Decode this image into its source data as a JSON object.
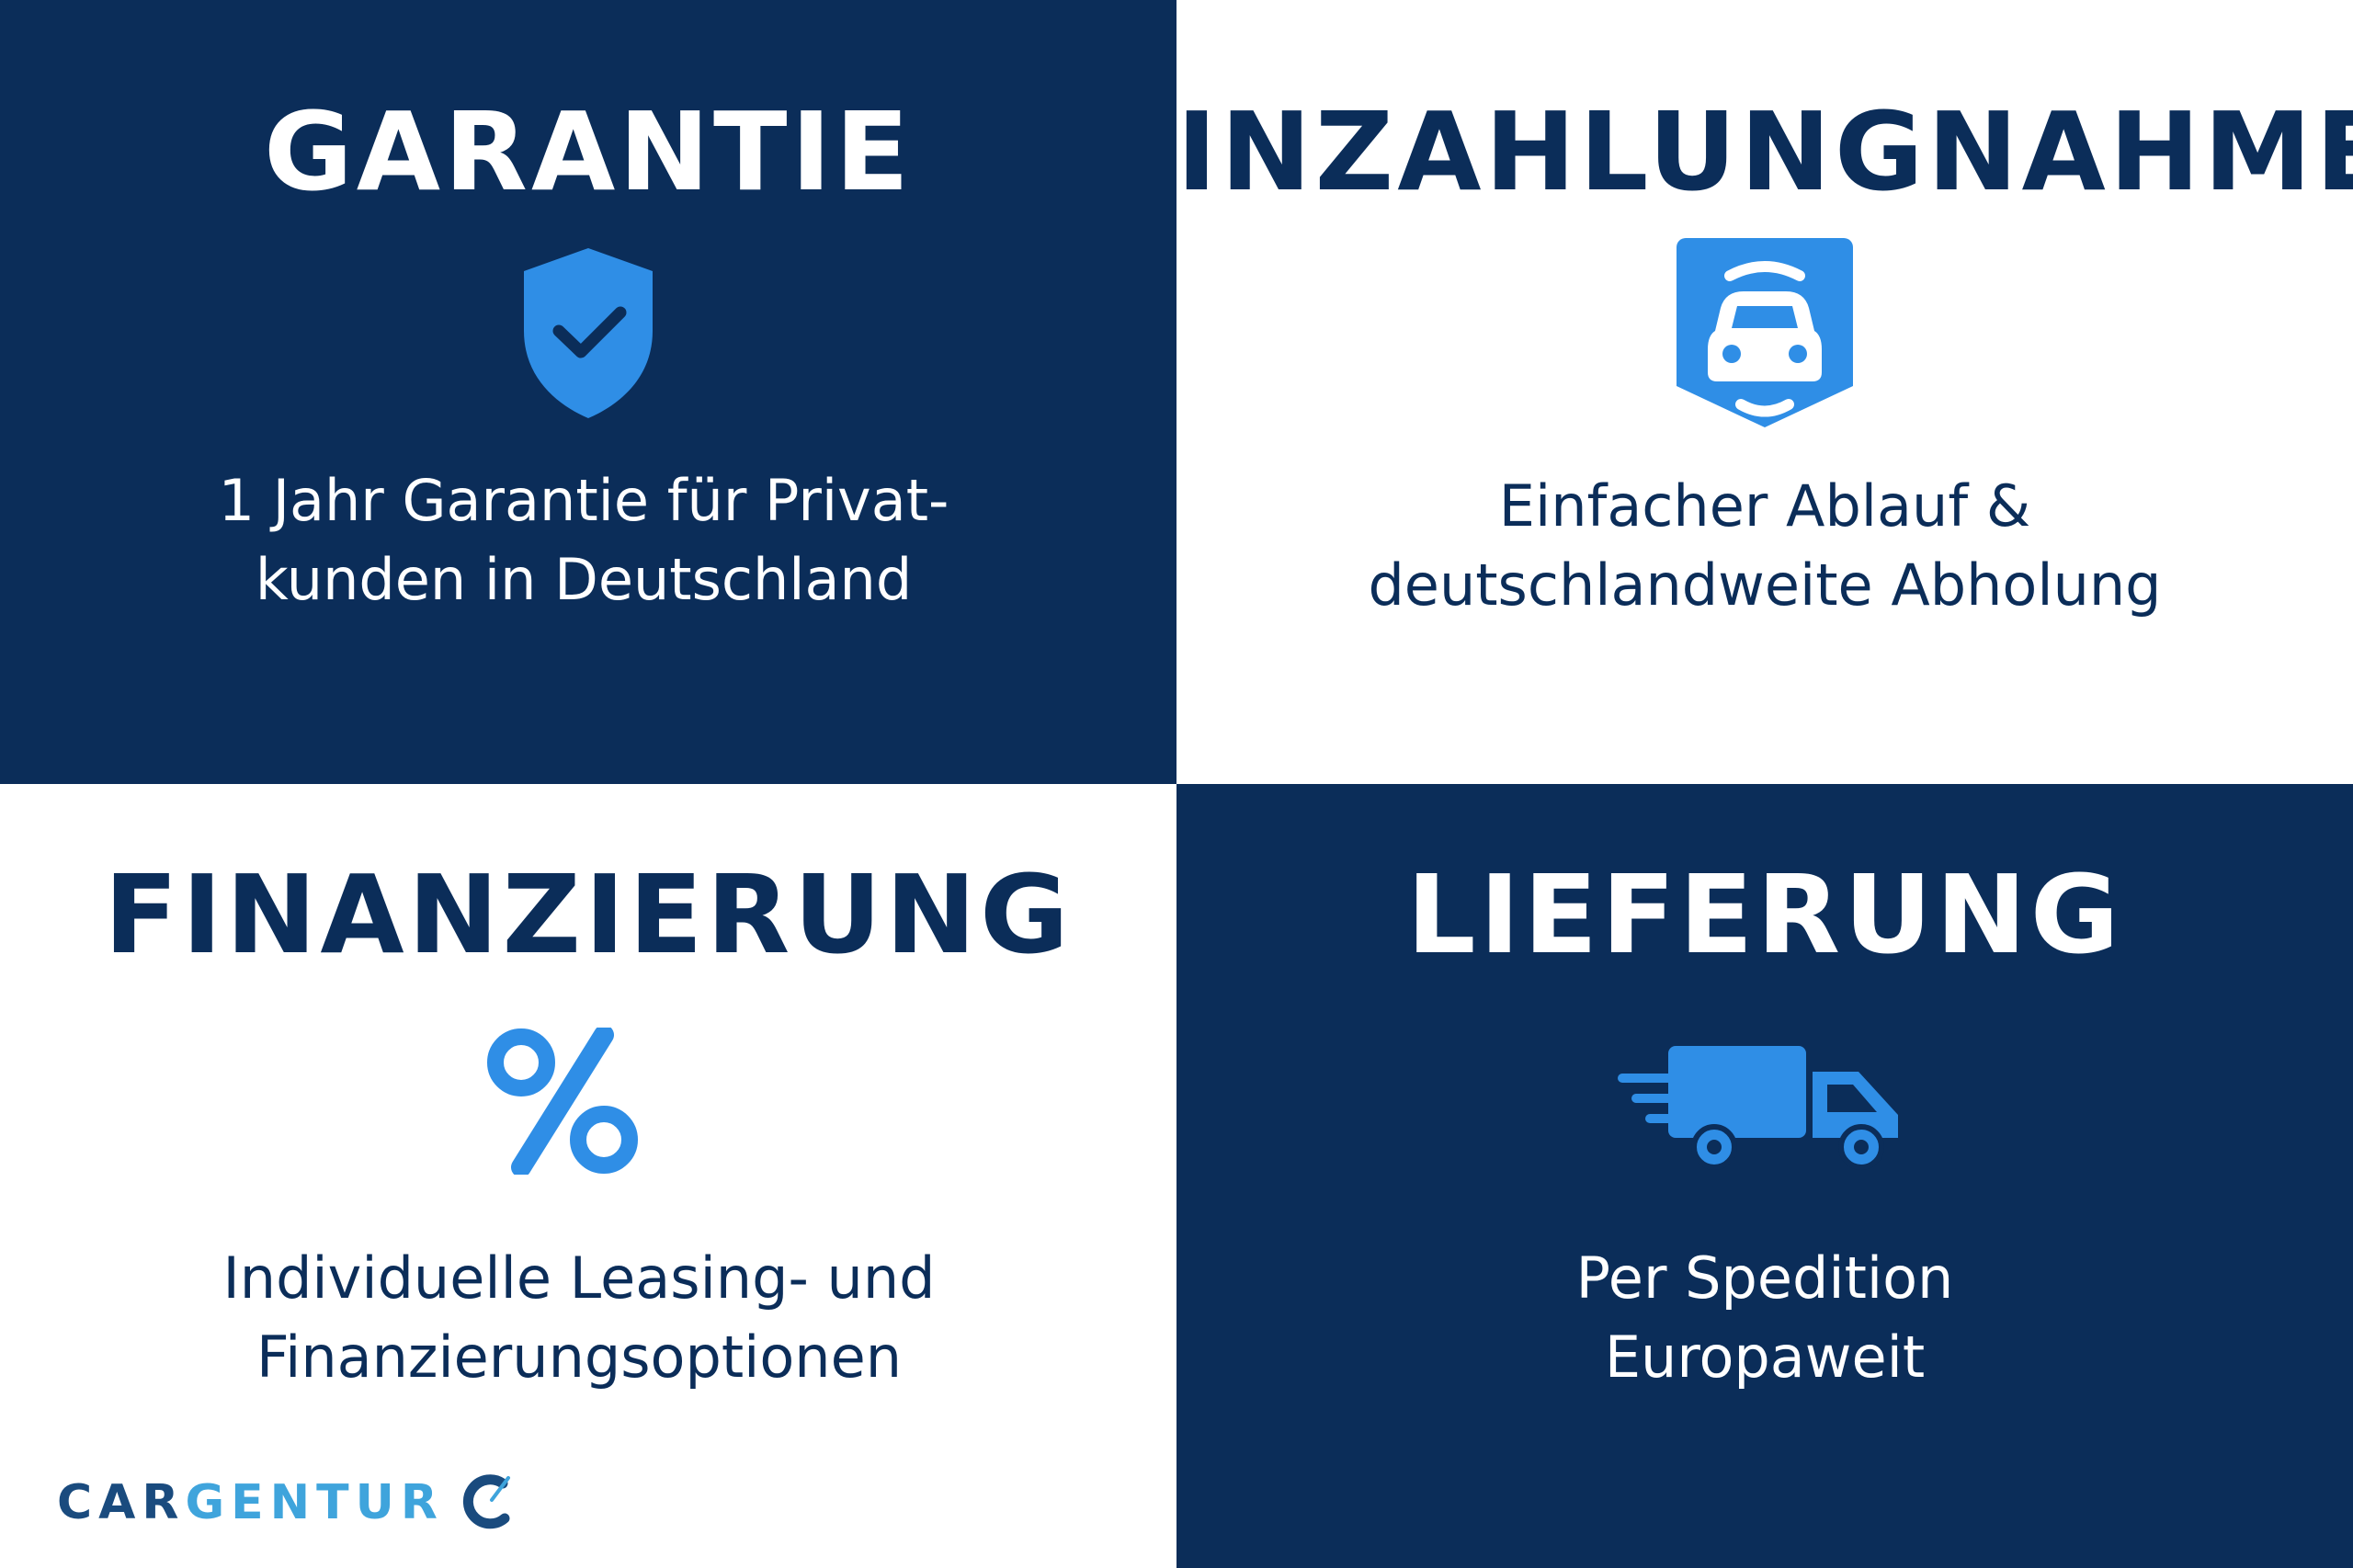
{
  "colors": {
    "navy": "#0b2d59",
    "accent_blue": "#2f8ee6",
    "logo_light": "#3fa4dc",
    "logo_dark": "#1a4b7e"
  },
  "tiles": [
    {
      "title": "GARANTIE",
      "icon": "shield-check-icon",
      "lines": [
        "1 Jahr Garantie für Privat-",
        "kunden in Deutschland"
      ]
    },
    {
      "title": "INZAHLUNGNAHME",
      "icon": "car-exchange-icon",
      "lines": [
        "Einfacher Ablauf &",
        "deutschlandweite Abholung"
      ]
    },
    {
      "title": "FINANZIERUNG",
      "icon": "percent-icon",
      "lines": [
        "Individuelle Leasing- und",
        "Finanzierungsoptionen"
      ]
    },
    {
      "title": "LIEFERUNG",
      "icon": "delivery-truck-icon",
      "lines": [
        "Per Spedition",
        "Europaweit"
      ]
    }
  ],
  "logo": {
    "part1": "CAR",
    "part2": "GENTUR",
    "icon": "cargentur-c-icon"
  }
}
